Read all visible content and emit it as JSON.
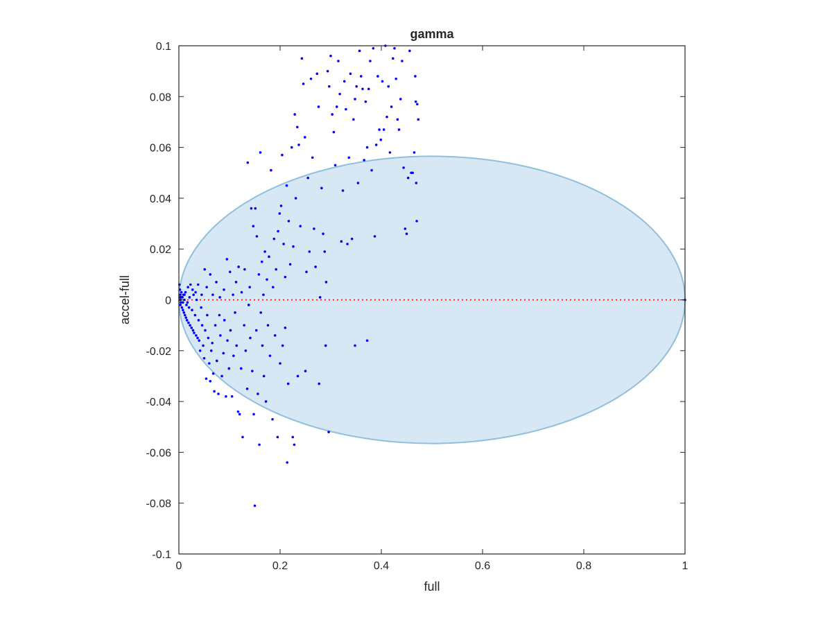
{
  "chart_data": {
    "type": "scatter",
    "title": "gamma",
    "xlabel": "full",
    "ylabel": "accel-full",
    "xlim": [
      0,
      1
    ],
    "ylim": [
      -0.1,
      0.1
    ],
    "xticks": [
      "0",
      "0.2",
      "0.4",
      "0.6",
      "0.8",
      "1"
    ],
    "yticks": [
      "-0.1",
      "-0.08",
      "-0.06",
      "-0.04",
      "-0.02",
      "0",
      "0.02",
      "0.04",
      "0.06",
      "0.08",
      "0.1"
    ],
    "xtick_values": [
      0,
      0.2,
      0.4,
      0.6,
      0.8,
      1
    ],
    "ytick_values": [
      -0.1,
      -0.08,
      -0.06,
      -0.04,
      -0.02,
      0,
      0.02,
      0.04,
      0.06,
      0.08,
      0.1
    ],
    "grid": false,
    "box": true,
    "colors": {
      "points": "#0000ff",
      "zero_line": "#ff0000",
      "ellipse_fill": "#d8e7f4",
      "ellipse_edge": "#8fbfdf",
      "axes": "#262626"
    },
    "reference_line": {
      "y": 0,
      "x_range": [
        0,
        1
      ],
      "style": "dotted"
    },
    "ellipse": {
      "center": [
        0.5,
        0
      ],
      "rx": 0.5,
      "ry": 0.0565
    },
    "series": [
      {
        "points": [
          [
            0.001,
            0.006
          ],
          [
            0.002,
            0.004
          ],
          [
            0.003,
            0.002
          ],
          [
            0.002,
            0.001
          ],
          [
            0.004,
            -0.001
          ],
          [
            0.003,
            -0.002
          ],
          [
            0.005,
            0.003
          ],
          [
            0.006,
            -0.003
          ],
          [
            0.007,
            0.001
          ],
          [
            0.008,
            -0.004
          ],
          [
            0.009,
            0.002
          ],
          [
            0.01,
            -0.005
          ],
          [
            0.011,
            0.0
          ],
          [
            0.012,
            -0.006
          ],
          [
            0.013,
            0.003
          ],
          [
            0.014,
            -0.007
          ],
          [
            0.015,
            -0.002
          ],
          [
            0.016,
            -0.008
          ],
          [
            0.018,
            0.005
          ],
          [
            0.019,
            -0.009
          ],
          [
            0.02,
            -0.003
          ],
          [
            0.022,
            -0.01
          ],
          [
            0.023,
            0.006
          ],
          [
            0.025,
            -0.011
          ],
          [
            0.026,
            -0.004
          ],
          [
            0.028,
            -0.012
          ],
          [
            0.029,
            0.002
          ],
          [
            0.03,
            -0.013
          ],
          [
            0.032,
            -0.006
          ],
          [
            0.034,
            -0.014
          ],
          [
            0.035,
            0.0
          ],
          [
            0.037,
            -0.015
          ],
          [
            0.039,
            -0.008
          ],
          [
            0.04,
            -0.016
          ],
          [
            0.042,
            -0.02
          ],
          [
            0.044,
            -0.003
          ],
          [
            0.046,
            -0.01
          ],
          [
            0.048,
            -0.018
          ],
          [
            0.05,
            -0.023
          ],
          [
            0.052,
            -0.012
          ],
          [
            0.054,
            -0.031
          ],
          [
            0.056,
            -0.006
          ],
          [
            0.058,
            -0.015
          ],
          [
            0.06,
            -0.025
          ],
          [
            0.062,
            -0.032
          ],
          [
            0.064,
            -0.02
          ],
          [
            0.066,
            -0.017
          ],
          [
            0.068,
            -0.029
          ],
          [
            0.07,
            -0.036
          ],
          [
            0.072,
            -0.01
          ],
          [
            0.075,
            -0.024
          ],
          [
            0.078,
            -0.037
          ],
          [
            0.08,
            -0.006
          ],
          [
            0.082,
            -0.014
          ],
          [
            0.085,
            -0.03
          ],
          [
            0.088,
            -0.021
          ],
          [
            0.09,
            -0.008
          ],
          [
            0.093,
            -0.038
          ],
          [
            0.096,
            -0.016
          ],
          [
            0.099,
            -0.027
          ],
          [
            0.102,
            -0.012
          ],
          [
            0.105,
            -0.038
          ],
          [
            0.108,
            -0.022
          ],
          [
            0.111,
            -0.005
          ],
          [
            0.114,
            -0.018
          ],
          [
            0.117,
            -0.044
          ],
          [
            0.12,
            -0.045
          ],
          [
            0.123,
            -0.027
          ],
          [
            0.126,
            -0.054
          ],
          [
            0.129,
            -0.01
          ],
          [
            0.132,
            -0.02
          ],
          [
            0.135,
            -0.035
          ],
          [
            0.138,
            -0.002
          ],
          [
            0.141,
            -0.015
          ],
          [
            0.145,
            -0.028
          ],
          [
            0.148,
            -0.045
          ],
          [
            0.15,
            -0.081
          ],
          [
            0.153,
            -0.012
          ],
          [
            0.156,
            -0.037
          ],
          [
            0.159,
            -0.057
          ],
          [
            0.162,
            -0.005
          ],
          [
            0.165,
            -0.018
          ],
          [
            0.168,
            -0.03
          ],
          [
            0.172,
            -0.04
          ],
          [
            0.176,
            -0.01
          ],
          [
            0.18,
            -0.022
          ],
          [
            0.185,
            -0.047
          ],
          [
            0.19,
            -0.014
          ],
          [
            0.195,
            -0.054
          ],
          [
            0.2,
            -0.025
          ],
          [
            0.205,
            -0.018
          ],
          [
            0.21,
            -0.011
          ],
          [
            0.214,
            -0.064
          ],
          [
            0.216,
            -0.033
          ],
          [
            0.225,
            -0.054
          ],
          [
            0.228,
            -0.057
          ],
          [
            0.235,
            -0.03
          ],
          [
            0.25,
            -0.028
          ],
          [
            0.277,
            -0.033
          ],
          [
            0.29,
            -0.018
          ],
          [
            0.296,
            -0.052
          ],
          [
            0.348,
            -0.018
          ],
          [
            0.372,
            -0.016
          ],
          [
            0.003,
            0.0
          ],
          [
            0.005,
            0.001
          ],
          [
            0.008,
            -0.001
          ],
          [
            0.011,
            0.002
          ],
          [
            0.017,
            -0.001
          ],
          [
            0.021,
            0.001
          ],
          [
            0.027,
            0.004
          ],
          [
            0.033,
            0.003
          ],
          [
            0.038,
            0.006
          ],
          [
            0.045,
            0.002
          ],
          [
            0.051,
            0.012
          ],
          [
            0.055,
            0.005
          ],
          [
            0.062,
            0.01
          ],
          [
            0.067,
            0.002
          ],
          [
            0.074,
            0.007
          ],
          [
            0.081,
            0.001
          ],
          [
            0.089,
            0.004
          ],
          [
            0.095,
            0.016
          ],
          [
            0.101,
            0.011
          ],
          [
            0.107,
            0.002
          ],
          [
            0.113,
            0.007
          ],
          [
            0.118,
            0.013
          ],
          [
            0.124,
            0.003
          ],
          [
            0.13,
            0.012
          ],
          [
            0.136,
            0.054
          ],
          [
            0.14,
            0.005
          ],
          [
            0.143,
            0.036
          ],
          [
            0.147,
            0.029
          ],
          [
            0.151,
            0.036
          ],
          [
            0.154,
            0.025
          ],
          [
            0.158,
            0.01
          ],
          [
            0.161,
            0.058
          ],
          [
            0.164,
            0.015
          ],
          [
            0.167,
            0.002
          ],
          [
            0.17,
            0.019
          ],
          [
            0.174,
            0.008
          ],
          [
            0.178,
            0.017
          ],
          [
            0.182,
            0.051
          ],
          [
            0.186,
            0.005
          ],
          [
            0.188,
            0.024
          ],
          [
            0.192,
            0.012
          ],
          [
            0.196,
            0.027
          ],
          [
            0.199,
            0.034
          ],
          [
            0.202,
            0.037
          ],
          [
            0.204,
            0.057
          ],
          [
            0.207,
            0.022
          ],
          [
            0.21,
            0.009
          ],
          [
            0.213,
            0.045
          ],
          [
            0.217,
            0.031
          ],
          [
            0.22,
            0.014
          ],
          [
            0.223,
            0.06
          ],
          [
            0.226,
            0.021
          ],
          [
            0.229,
            0.073
          ],
          [
            0.231,
            0.04
          ],
          [
            0.234,
            0.068
          ],
          [
            0.237,
            0.061
          ],
          [
            0.24,
            0.029
          ],
          [
            0.243,
            0.095
          ],
          [
            0.246,
            0.085
          ],
          [
            0.249,
            0.064
          ],
          [
            0.252,
            0.011
          ],
          [
            0.255,
            0.048
          ],
          [
            0.258,
            0.019
          ],
          [
            0.261,
            0.087
          ],
          [
            0.264,
            0.056
          ],
          [
            0.267,
            0.028
          ],
          [
            0.27,
            0.013
          ],
          [
            0.273,
            0.089
          ],
          [
            0.276,
            0.076
          ],
          [
            0.279,
            0.001
          ],
          [
            0.282,
            0.044
          ],
          [
            0.285,
            0.026
          ],
          [
            0.288,
            0.019
          ],
          [
            0.291,
            0.007
          ],
          [
            0.294,
            0.09
          ],
          [
            0.297,
            0.084
          ],
          [
            0.3,
            0.096
          ],
          [
            0.303,
            0.073
          ],
          [
            0.306,
            0.066
          ],
          [
            0.309,
            0.053
          ],
          [
            0.312,
            0.076
          ],
          [
            0.315,
            0.094
          ],
          [
            0.318,
            0.081
          ],
          [
            0.321,
            0.023
          ],
          [
            0.324,
            0.043
          ],
          [
            0.327,
            0.086
          ],
          [
            0.33,
            0.075
          ],
          [
            0.333,
            0.022
          ],
          [
            0.336,
            0.056
          ],
          [
            0.339,
            0.089
          ],
          [
            0.342,
            0.024
          ],
          [
            0.345,
            0.071
          ],
          [
            0.348,
            0.079
          ],
          [
            0.351,
            0.084
          ],
          [
            0.354,
            0.046
          ],
          [
            0.357,
            0.098
          ],
          [
            0.36,
            0.088
          ],
          [
            0.363,
            0.083
          ],
          [
            0.366,
            0.055
          ],
          [
            0.369,
            0.078
          ],
          [
            0.372,
            0.06
          ],
          [
            0.375,
            0.083
          ],
          [
            0.378,
            0.094
          ],
          [
            0.381,
            0.051
          ],
          [
            0.384,
            0.099
          ],
          [
            0.387,
            0.025
          ],
          [
            0.39,
            0.061
          ],
          [
            0.393,
            0.088
          ],
          [
            0.396,
            0.067
          ],
          [
            0.399,
            0.063
          ],
          [
            0.402,
            0.086
          ],
          [
            0.405,
            0.067
          ],
          [
            0.408,
            0.1
          ],
          [
            0.411,
            0.072
          ],
          [
            0.414,
            0.084
          ],
          [
            0.417,
            0.058
          ],
          [
            0.42,
            0.076
          ],
          [
            0.423,
            0.095
          ],
          [
            0.426,
            0.099
          ],
          [
            0.429,
            0.087
          ],
          [
            0.432,
            0.071
          ],
          [
            0.435,
            0.067
          ],
          [
            0.438,
            0.079
          ],
          [
            0.441,
            0.094
          ],
          [
            0.444,
            0.052
          ],
          [
            0.447,
            0.028
          ],
          [
            0.45,
            0.026
          ],
          [
            0.453,
            0.048
          ],
          [
            0.456,
            0.098
          ],
          [
            0.459,
            0.05
          ],
          [
            0.462,
            0.05
          ],
          [
            0.465,
            0.058
          ],
          [
            0.467,
            0.088
          ],
          [
            0.468,
            0.078
          ],
          [
            0.469,
            0.046
          ],
          [
            0.47,
            0.031
          ],
          [
            0.471,
            0.077
          ],
          [
            0.473,
            0.071
          ],
          [
            1.0,
            0.0
          ]
        ]
      }
    ]
  }
}
